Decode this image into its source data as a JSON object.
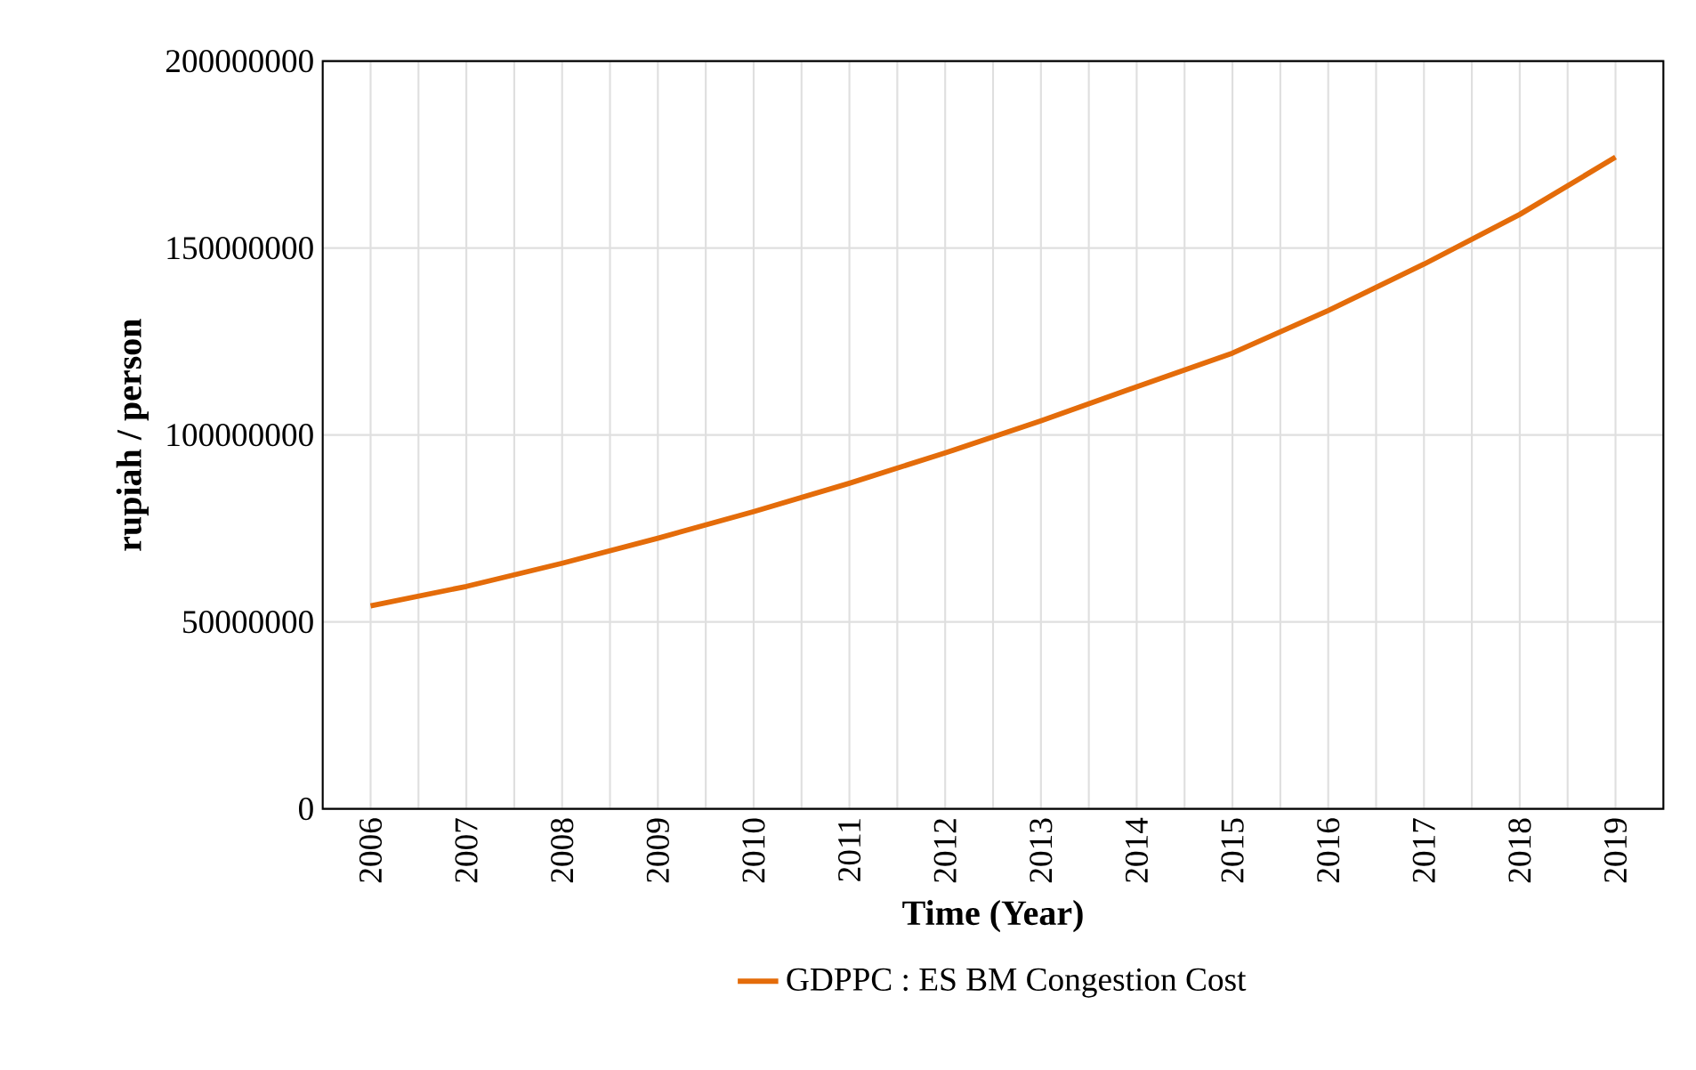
{
  "chart_data": {
    "type": "line",
    "xlabel": "Time (Year)",
    "ylabel": "rupiah / person",
    "categories": [
      "2006",
      "2007",
      "2008",
      "2009",
      "2010",
      "2011",
      "2012",
      "2013",
      "2014",
      "2015",
      "2016",
      "2017",
      "2018",
      "2019"
    ],
    "series": [
      {
        "name": "GDPPC : ES BM Congestion Cost",
        "color": "#e46c0a",
        "values": [
          54300000,
          59500000,
          65700000,
          72400000,
          79500000,
          87100000,
          95200000,
          103800000,
          112900000,
          121900000,
          133300000,
          145700000,
          159000000,
          174300000
        ]
      }
    ],
    "ylim": [
      0,
      200000000
    ],
    "yticks": [
      0,
      50000000,
      100000000,
      150000000,
      200000000
    ],
    "grid": true,
    "legend": "bottom",
    "marker": "none",
    "line_style": "solid"
  }
}
